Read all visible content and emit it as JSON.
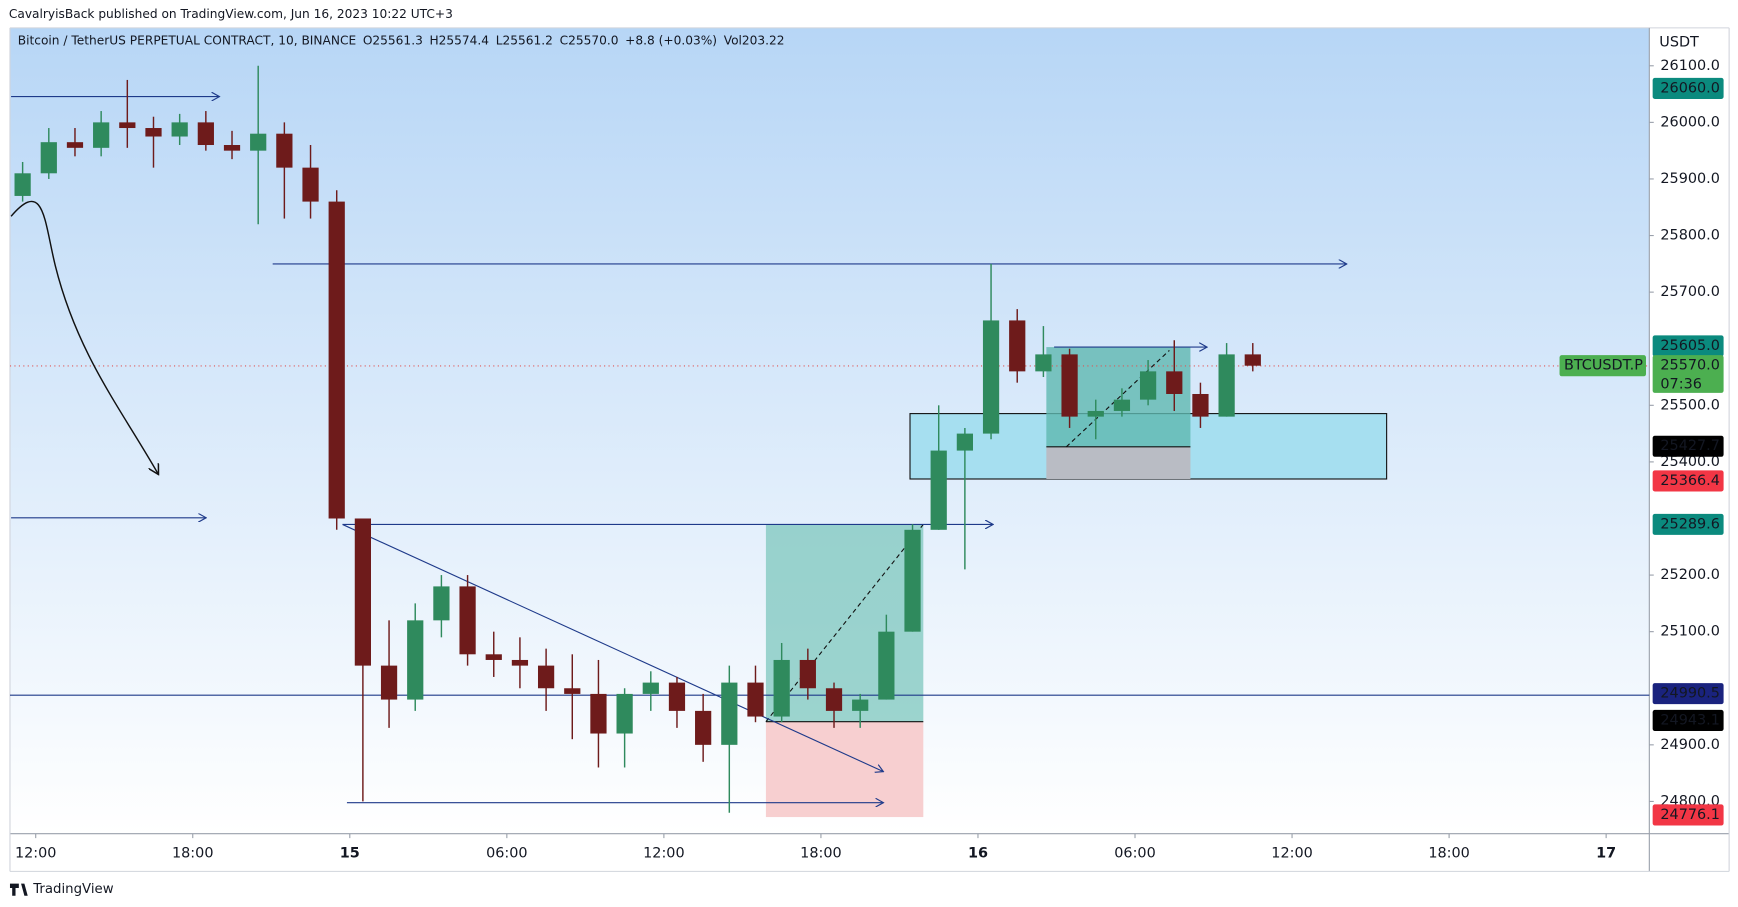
{
  "header": {
    "published": "CavalryisBack published on TradingView.com, Jun 16, 2023 10:22 UTC+3",
    "symbol": "Bitcoin / TetherUS PERPETUAL CONTRACT, 10, BINANCE",
    "open": "O25561.3",
    "high": "H25574.4",
    "low": "L25561.2",
    "close": "C25570.0",
    "change": "+8.8 (+0.03%)",
    "volume": "Vol203.22"
  },
  "footer": {
    "logo": "TradingView"
  },
  "chart_data": {
    "type": "candlestick",
    "y_unit": "USDT",
    "up_color": "#2f8a5d",
    "down_color": "#6e1b1b",
    "x": [
      "Jun 14 11:00",
      "Jun 14 12:00",
      "Jun 14 13:00",
      "Jun 14 14:00",
      "Jun 14 15:00",
      "Jun 14 16:00",
      "Jun 14 17:00",
      "Jun 14 18:00",
      "Jun 14 19:00",
      "Jun 14 20:00",
      "Jun 14 21:00",
      "Jun 14 22:00",
      "Jun 14 23:00",
      "Jun 15 00:00",
      "Jun 15 01:00",
      "Jun 15 02:00",
      "Jun 15 03:00",
      "Jun 15 04:00",
      "Jun 15 05:00",
      "Jun 15 06:00",
      "Jun 15 07:00",
      "Jun 15 08:00",
      "Jun 15 09:00",
      "Jun 15 10:00",
      "Jun 15 11:00",
      "Jun 15 12:00",
      "Jun 15 13:00",
      "Jun 15 14:00",
      "Jun 15 15:00",
      "Jun 15 16:00",
      "Jun 15 17:00",
      "Jun 15 18:00",
      "Jun 15 19:00",
      "Jun 15 20:00",
      "Jun 15 21:00",
      "Jun 15 22:00",
      "Jun 15 23:00",
      "Jun 16 00:00",
      "Jun 16 01:00",
      "Jun 16 02:00",
      "Jun 16 03:00",
      "Jun 16 04:00",
      "Jun 16 05:00",
      "Jun 16 06:00",
      "Jun 16 07:00",
      "Jun 16 08:00",
      "Jun 16 09:00",
      "Jun 16 10:00"
    ],
    "open": [
      25870,
      25910,
      25965,
      25955,
      26000,
      25990,
      25975,
      26000,
      25960,
      25950,
      25980,
      25920,
      25860,
      25300,
      25040,
      24980,
      25120,
      25180,
      25060,
      25050,
      25040,
      25000,
      24990,
      24920,
      24990,
      25010,
      24960,
      24900,
      25010,
      24950,
      25050,
      25000,
      24960,
      24980,
      25100,
      25280,
      25420,
      25450,
      25650,
      25560,
      25590,
      25480,
      25490,
      25510,
      25560,
      25520,
      25480,
      25590
    ],
    "high": [
      25930,
      25990,
      25990,
      26020,
      26075,
      26010,
      26015,
      26020,
      25985,
      26100,
      26000,
      25960,
      25880,
      25300,
      25120,
      25150,
      25200,
      25200,
      25100,
      25090,
      25070,
      25060,
      25050,
      25000,
      25030,
      25020,
      24990,
      25040,
      25040,
      25080,
      25070,
      25010,
      24990,
      25130,
      25290,
      25500,
      25460,
      25750,
      25670,
      25640,
      25600,
      25510,
      25530,
      25580,
      25615,
      25540,
      25610,
      25610
    ],
    "low": [
      25860,
      25900,
      25940,
      25940,
      25955,
      25920,
      25960,
      25950,
      25935,
      25820,
      25830,
      25830,
      25280,
      24800,
      24930,
      24960,
      25090,
      25040,
      25020,
      25000,
      24960,
      24910,
      24860,
      24860,
      24960,
      24930,
      24870,
      24780,
      24940,
      24940,
      24980,
      24930,
      24930,
      24980,
      25100,
      25280,
      25210,
      25440,
      25540,
      25550,
      25460,
      25440,
      25480,
      25500,
      25490,
      25460,
      25480,
      25560
    ],
    "close": [
      25910,
      25965,
      25955,
      26000,
      25990,
      25975,
      26000,
      25960,
      25950,
      25980,
      25920,
      25860,
      25300,
      25040,
      24980,
      25120,
      25180,
      25060,
      25050,
      25040,
      25000,
      24990,
      24920,
      24990,
      25010,
      24960,
      24900,
      25010,
      24950,
      25050,
      25000,
      24960,
      24980,
      25100,
      25280,
      25420,
      25450,
      25650,
      25560,
      25590,
      25480,
      25490,
      25510,
      25560,
      25520,
      25480,
      25590,
      25570
    ],
    "xlim": [
      "Jun 14 11:01",
      "Jun 17 01:39"
    ],
    "xticks": [
      {
        "value": "Jun 14 12:00",
        "label": "12:00"
      },
      {
        "value": "Jun 14 18:00",
        "label": "18:00"
      },
      {
        "value": "Jun 15 00:00",
        "label": "15"
      },
      {
        "value": "Jun 15 06:00",
        "label": "06:00"
      },
      {
        "value": "Jun 15 12:00",
        "label": "12:00"
      },
      {
        "value": "Jun 15 18:00",
        "label": "18:00"
      },
      {
        "value": "Jun 16 00:00",
        "label": "16"
      },
      {
        "value": "Jun 16 06:00",
        "label": "06:00"
      },
      {
        "value": "Jun 16 12:00",
        "label": "12:00"
      },
      {
        "value": "Jun 16 18:00",
        "label": "18:00"
      },
      {
        "value": "Jun 17 00:00",
        "label": "17"
      }
    ],
    "ylim": [
      24743,
      26167
    ],
    "yticks": [
      {
        "value": 26100,
        "label": "26100.0"
      },
      {
        "value": 26000,
        "label": "26000.0"
      },
      {
        "value": 25900,
        "label": "25900.0"
      },
      {
        "value": 25800,
        "label": "25800.0"
      },
      {
        "value": 25700,
        "label": "25700.0"
      },
      {
        "value": 25500,
        "label": "25500.0"
      },
      {
        "value": 25400,
        "label": "25400.0"
      },
      {
        "value": 25200,
        "label": "25200.0"
      },
      {
        "value": 25100,
        "label": "25100.0"
      },
      {
        "value": 24900,
        "label": "24900.0"
      },
      {
        "value": 24800,
        "label": "24800.0"
      }
    ],
    "price_labels": [
      {
        "value": 26060,
        "label": "26060.0",
        "color": "#0b8a7e"
      },
      {
        "value": 25605,
        "label": "25605.0",
        "color": "#0b8a7e"
      },
      {
        "value": 25570,
        "label": "25570.0",
        "color": "#4caf50",
        "countdown": "07:36",
        "symbol_tag": "BTCUSDT.P"
      },
      {
        "value": 25427.7,
        "label": "25427.7",
        "color": "#000000"
      },
      {
        "value": 25366.4,
        "label": "25366.4",
        "color": "#f23645"
      },
      {
        "value": 25289.6,
        "label": "25289.6",
        "color": "#0b8a7e"
      },
      {
        "value": 24990.5,
        "label": "24990.5",
        "color": "#1a237e"
      },
      {
        "value": 24943.1,
        "label": "24943.1",
        "color": "#000000"
      },
      {
        "value": 24776.1,
        "label": "24776.1",
        "color": "#f23645"
      }
    ]
  }
}
